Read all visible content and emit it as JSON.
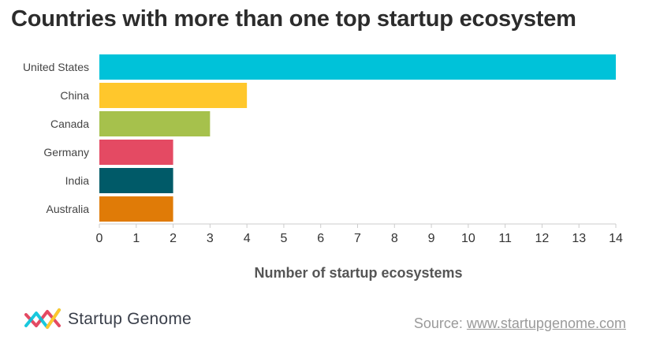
{
  "chart_data": {
    "type": "bar",
    "orientation": "horizontal",
    "title": "Countries with more than one top startup ecosystem",
    "xlabel": "Number of startup ecosystems",
    "ylabel": "",
    "categories": [
      "United States",
      "China",
      "Canada",
      "Germany",
      "India",
      "Australia"
    ],
    "values": [
      14,
      4,
      3,
      2,
      2,
      2
    ],
    "colors": [
      "#00c2d9",
      "#ffc72c",
      "#a6c14c",
      "#e44a63",
      "#005a68",
      "#e07b07"
    ],
    "xlim": [
      0,
      14
    ],
    "xticks": [
      "0",
      "1",
      "2",
      "3",
      "4",
      "5",
      "6",
      "7",
      "8",
      "9",
      "10",
      "11",
      "12",
      "13",
      "14"
    ],
    "grid": false,
    "legend": "none"
  },
  "branding": {
    "logo_text": "Startup Genome",
    "source_prefix": "Source: ",
    "source_link": "www.startupgenome.com"
  },
  "colors": {
    "logo_pink": "#e44a63",
    "logo_yellow": "#ffc72c",
    "logo_teal": "#00c2d9"
  }
}
